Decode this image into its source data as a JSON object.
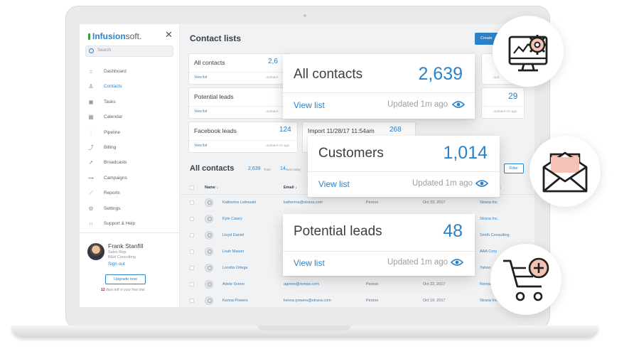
{
  "sidebar": {
    "logo_brand": "Infusion",
    "logo_suffix": "soft.",
    "close_symbol": "✕",
    "search_placeholder": "Search",
    "items": [
      {
        "label": "Dashboard",
        "icon": "home-icon"
      },
      {
        "label": "Contacts",
        "icon": "person-icon",
        "active": true
      },
      {
        "label": "Tasks",
        "icon": "clipboard-icon"
      },
      {
        "label": "Calendar",
        "icon": "calendar-icon"
      },
      {
        "label": "Pipeline",
        "icon": "pipeline-icon"
      },
      {
        "label": "Billing",
        "icon": "billing-icon"
      },
      {
        "label": "Broadcasts",
        "icon": "paper-plane-icon"
      },
      {
        "label": "Campaigns",
        "icon": "campaign-icon"
      },
      {
        "label": "Reports",
        "icon": "chart-icon"
      },
      {
        "label": "Settings",
        "icon": "gear-icon"
      },
      {
        "label": "Support & Help",
        "icon": "headset-icon"
      }
    ],
    "user": {
      "name": "Frank Stanfill",
      "role": "Sales Rep",
      "company": "B&H Consulting",
      "sign_out": "Sign out",
      "upgrade": "Upgrade now",
      "trial_days": "12",
      "trial_text": " days left in your free trial"
    }
  },
  "header": {
    "title": "Contact lists",
    "create_label": "Create"
  },
  "cards": [
    {
      "title": "All contacts",
      "count": "2,6",
      "link": "View list",
      "updated": "Updated"
    },
    {
      "title": "Potential leads",
      "link": "View list",
      "updated": "Updated"
    },
    {
      "title": "Facebook leads",
      "count": "124",
      "link": "View list",
      "updated": "Updated 1m ago"
    },
    {
      "title": "Import 11/28/17 11:54am",
      "count": "268"
    },
    {
      "count": "29",
      "updated": "Updated 1m ago"
    },
    {
      "updated": "Upd"
    }
  ],
  "section": {
    "title": "All contacts",
    "total": "2,639",
    "total_label": "Total",
    "new": "14",
    "new_label": "New today",
    "filter": "Filter"
  },
  "table": {
    "headers": {
      "name": "Name ↓",
      "email": "Email ↓",
      "sort": "↓"
    },
    "rows": [
      {
        "name": "Katherine Lebouski",
        "email": "katherine@strava.com",
        "type": "Person",
        "date": "Oct 23, 2017",
        "company": "Strava Inc."
      },
      {
        "name": "Kyle Casey",
        "company": "Strava Inc."
      },
      {
        "name": "Lloyd Daniel",
        "company": "Smith Consulting"
      },
      {
        "name": "Leah Mason",
        "company": "AAA Corp"
      },
      {
        "name": "Loretta Ortega",
        "company": "Yahoo"
      },
      {
        "name": "Adele Green",
        "email": "agreen@remax.com",
        "type": "Person",
        "date": "Oct 22, 2017",
        "company": "Remax"
      },
      {
        "name": "Kenna Powers",
        "email": "kenna.powers@strava.com",
        "type": "Person",
        "date": "Oct 19, 2017",
        "company": "Strava Inc."
      }
    ]
  },
  "popups": [
    {
      "title": "All contacts",
      "count": "2,639",
      "link": "View list",
      "updated": "Updated 1m ago"
    },
    {
      "title": "Customers",
      "count": "1,014",
      "link": "View list",
      "updated": "Updated 1m ago"
    },
    {
      "title": "Potential leads",
      "count": "48",
      "link": "View list",
      "updated": "Updated 1m ago"
    }
  ],
  "icons": {
    "monitor": "monitor-gear-icon",
    "mail": "open-envelope-icon",
    "cart": "cart-add-icon"
  },
  "colors": {
    "accent": "#2c82c9",
    "icon_fill": "#f6c2b5",
    "trial_red": "#d0021b"
  }
}
